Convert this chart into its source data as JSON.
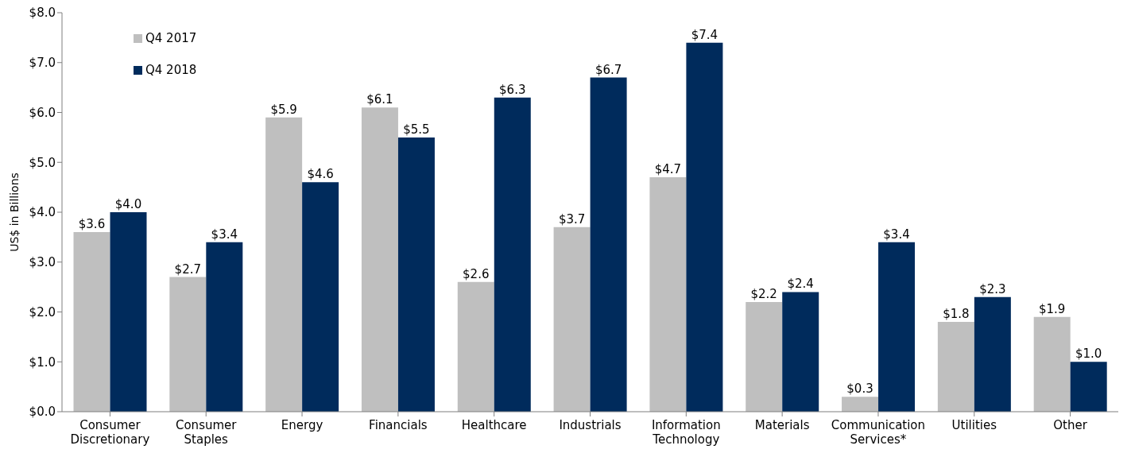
{
  "chart_data": {
    "type": "bar",
    "ylabel": "US$ in Billions",
    "categories": [
      "Consumer Discretionary",
      "Consumer Staples",
      "Energy",
      "Financials",
      "Healthcare",
      "Industrials",
      "Information Technology",
      "Materials",
      "Communication Services*",
      "Utilities",
      "Other"
    ],
    "series": [
      {
        "name": "Q4 2017",
        "color": "#bfbfbf",
        "values": [
          3.6,
          2.7,
          5.9,
          6.1,
          2.6,
          3.7,
          4.7,
          2.2,
          0.3,
          1.8,
          1.9
        ],
        "value_labels": [
          "$3.6",
          "$2.7",
          "$5.9",
          "$6.1",
          "$2.6",
          "$3.7",
          "$4.7",
          "$2.2",
          "$0.3",
          "$1.8",
          "$1.9"
        ]
      },
      {
        "name": "Q4 2018",
        "color": "#002b5c",
        "values": [
          4.0,
          3.4,
          4.6,
          5.5,
          6.3,
          6.7,
          7.4,
          2.4,
          3.4,
          2.3,
          1.0
        ],
        "value_labels": [
          "$4.0",
          "$3.4",
          "$4.6",
          "$5.5",
          "$6.3",
          "$6.7",
          "$7.4",
          "$2.4",
          "$3.4",
          "$2.3",
          "$1.0"
        ]
      }
    ],
    "ylim": [
      0,
      8
    ],
    "yticks": [
      {
        "value": 0,
        "label": "$0.0"
      },
      {
        "value": 1,
        "label": "$1.0"
      },
      {
        "value": 2,
        "label": "$2.0"
      },
      {
        "value": 3,
        "label": "$3.0"
      },
      {
        "value": 4,
        "label": "$4.0"
      },
      {
        "value": 5,
        "label": "$5.0"
      },
      {
        "value": 6,
        "label": "$6.0"
      },
      {
        "value": 7,
        "label": "$7.0"
      },
      {
        "value": 8,
        "label": "$8.0"
      }
    ],
    "legend": "top left",
    "grid": false
  }
}
